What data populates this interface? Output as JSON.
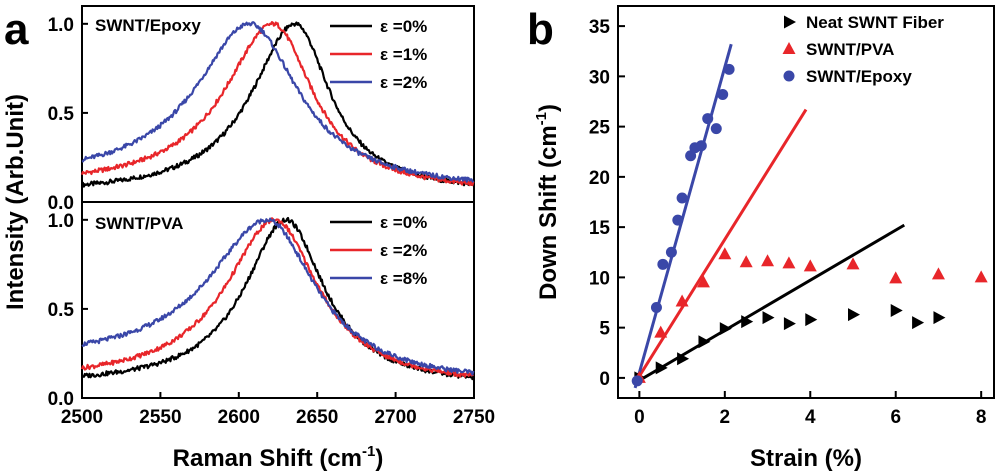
{
  "panels": {
    "a": {
      "letter": "a",
      "ylabel": "Intensity (Arb.Unit)",
      "xlabel_main": "Raman Shift (cm",
      "xlabel_sup": "-1",
      "xlabel_end": ")"
    },
    "b": {
      "letter": "b",
      "xlabel": "Strain (%)",
      "ylabel_main": "Down Shift (cm",
      "ylabel_sup": "-1",
      "ylabel_end": ")"
    }
  },
  "chart_data": [
    {
      "type": "line",
      "panel": "a-top",
      "label": "SWNT/Epoxy",
      "xlim": [
        2500,
        2750
      ],
      "ylim": [
        0,
        1.1
      ],
      "x_ticks": [
        "2500",
        "2550",
        "2600",
        "2650",
        "2700",
        "2750"
      ],
      "y_ticks": [
        "0.0",
        "0.5",
        "1.0"
      ],
      "y_tick_values": [
        0,
        0.5,
        1.0
      ],
      "series": [
        {
          "name": "ε =0%",
          "color": "#000000",
          "peak": 2636,
          "hwhm_left": 34,
          "hwhm_right": 27,
          "baseline_left": 0.04,
          "baseline_right": 0.05
        },
        {
          "name": "ε =1%",
          "color": "#e8262a",
          "peak": 2622,
          "hwhm_left": 38,
          "hwhm_right": 31,
          "baseline_left": 0.08,
          "baseline_right": 0.05
        },
        {
          "name": "ε =2%",
          "color": "#3a47a8",
          "peak": 2607,
          "hwhm_left": 42,
          "hwhm_right": 38,
          "baseline_left": 0.12,
          "baseline_right": 0.06
        }
      ]
    },
    {
      "type": "line",
      "panel": "a-bottom",
      "label": "SWNT/PVA",
      "xlim": [
        2500,
        2750
      ],
      "ylim": [
        0,
        1.1
      ],
      "x_ticks": [
        "2500",
        "2550",
        "2600",
        "2650",
        "2700",
        "2750"
      ],
      "y_ticks": [
        "0.0",
        "0.5",
        "1.0"
      ],
      "y_tick_values": [
        0,
        0.5,
        1.0
      ],
      "series": [
        {
          "name": "ε =0%",
          "color": "#000000",
          "peak": 2630,
          "hwhm_left": 32,
          "hwhm_right": 30,
          "baseline_left": 0.07,
          "baseline_right": 0.06
        },
        {
          "name": "ε =2%",
          "color": "#e8262a",
          "peak": 2623,
          "hwhm_left": 38,
          "hwhm_right": 34,
          "baseline_left": 0.09,
          "baseline_right": 0.06
        },
        {
          "name": "ε =8%",
          "color": "#3a47a8",
          "peak": 2618,
          "hwhm_left": 45,
          "hwhm_right": 38,
          "baseline_left": 0.2,
          "baseline_right": 0.07
        }
      ]
    },
    {
      "type": "scatter",
      "panel": "b",
      "xlim": [
        -0.5,
        8.3
      ],
      "ylim": [
        -2,
        37
      ],
      "x_ticks": [
        0,
        2,
        4,
        6,
        8
      ],
      "y_ticks": [
        0,
        5,
        10,
        15,
        20,
        25,
        30,
        35
      ],
      "series": [
        {
          "name": "Neat SWNT Fiber",
          "color": "#000000",
          "marker": "triangle-right",
          "x": [
            0,
            0.5,
            1.0,
            1.5,
            2.0,
            2.5,
            3.0,
            3.5,
            4.0,
            5.0,
            6.0,
            6.5,
            7.0
          ],
          "y": [
            0,
            1.0,
            1.9,
            3.6,
            4.9,
            5.6,
            6.0,
            5.4,
            5.8,
            6.3,
            6.7,
            5.5,
            6.0
          ],
          "fit": {
            "x": [
              -0.1,
              6.2
            ],
            "y": [
              -0.5,
              15.2
            ]
          }
        },
        {
          "name": "SWNT/PVA",
          "color": "#e8262a",
          "marker": "triangle-up",
          "x": [
            0,
            0.5,
            1.0,
            1.5,
            2.0,
            2.5,
            3.0,
            3.5,
            4.0,
            5.0,
            6.0,
            7.0,
            8.0
          ],
          "y": [
            0,
            4.5,
            7.6,
            9.5,
            12.3,
            11.5,
            11.6,
            11.4,
            11.1,
            11.3,
            9.9,
            10.3,
            10.0
          ],
          "fit": {
            "x": [
              -0.1,
              3.9
            ],
            "y": [
              -0.5,
              26.7
            ]
          }
        },
        {
          "name": "SWNT/Epoxy",
          "color": "#3a47a8",
          "marker": "circle",
          "x": [
            -0.05,
            0.4,
            0.55,
            0.75,
            0.9,
            1.0,
            1.2,
            1.3,
            1.45,
            1.6,
            1.8,
            1.95,
            2.1
          ],
          "y": [
            -0.3,
            7.0,
            11.3,
            12.5,
            15.7,
            17.9,
            22.1,
            22.9,
            23.1,
            25.8,
            24.8,
            28.2,
            30.7
          ],
          "fit": {
            "x": [
              -0.1,
              2.15
            ],
            "y": [
              -1.0,
              33.2
            ]
          }
        }
      ]
    }
  ]
}
